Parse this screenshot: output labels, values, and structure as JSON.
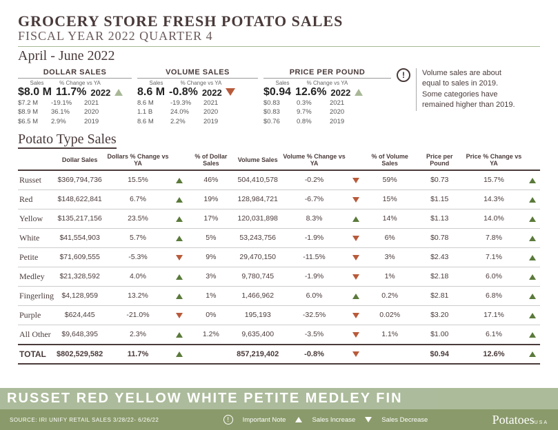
{
  "title_main": "GROCERY STORE  FRESH POTATO SALES",
  "title_sub": "FISCAL YEAR 2022 QUARTER 4",
  "period": "April - June 2022",
  "dollar": {
    "hdr": "DOLLAR SALES",
    "c1": "Sales",
    "c2": "% Change vs YA",
    "val": "$8.0 M",
    "pct": "11.7%",
    "yr": "2022",
    "dir": "up",
    "rows": [
      [
        "$7.2 M",
        "-19.1%",
        "2021"
      ],
      [
        "$8.9 M",
        "36.1%",
        "2020"
      ],
      [
        "$6.5 M",
        "2.9%",
        "2019"
      ]
    ]
  },
  "volume": {
    "hdr": "VOLUME SALES",
    "c1": "Sales",
    "c2": "% Change vs YA",
    "val": "8.6 M",
    "pct": "-0.8%",
    "yr": "2022",
    "dir": "down",
    "rows": [
      [
        "8.6 M",
        "-19.3%",
        "2021"
      ],
      [
        "1.1 B",
        "24.0%",
        "2020"
      ],
      [
        "8.6 M",
        "2.2%",
        "2019"
      ]
    ]
  },
  "price": {
    "hdr": "PRICE PER POUND",
    "c1": "Sales",
    "c2": "% Change vs YA",
    "val": "$0.94",
    "pct": "12.6%",
    "yr": "2022",
    "dir": "up",
    "rows": [
      [
        "$0.83",
        "0.3%",
        "2021"
      ],
      [
        "$0.83",
        "9.7%",
        "2020"
      ],
      [
        "$0.76",
        "0.8%",
        "2019"
      ]
    ]
  },
  "note": "Volume sales are about equal to sales in 2019. Some categories have remained higher than 2019.",
  "section": "Potato Type Sales",
  "cols": [
    "",
    "Dollar Sales",
    "Dollars % Change vs YA",
    "",
    "% of Dollar Sales",
    "Volume Sales",
    "Volume % Change vs YA",
    "",
    "% of Volume Sales",
    "Price per Pound",
    "Price % Change vs YA",
    ""
  ],
  "rows": [
    {
      "n": "Russet",
      "ds": "$369,794,736",
      "dp": "15.5%",
      "dd": "up",
      "dsh": "46%",
      "vs": "504,410,578",
      "vp": "-0.2%",
      "vd": "down",
      "vsh": "59%",
      "pp": "$0.73",
      "ppc": "15.7%",
      "pd": "up"
    },
    {
      "n": "Red",
      "ds": "$148,622,841",
      "dp": "6.7%",
      "dd": "up",
      "dsh": "19%",
      "vs": "128,984,721",
      "vp": "-6.7%",
      "vd": "down",
      "vsh": "15%",
      "pp": "$1.15",
      "ppc": "14.3%",
      "pd": "up"
    },
    {
      "n": "Yellow",
      "ds": "$135,217,156",
      "dp": "23.5%",
      "dd": "up",
      "dsh": "17%",
      "vs": "120,031,898",
      "vp": "8.3%",
      "vd": "up",
      "vsh": "14%",
      "pp": "$1.13",
      "ppc": "14.0%",
      "pd": "up"
    },
    {
      "n": "White",
      "ds": "$41,554,903",
      "dp": "5.7%",
      "dd": "up",
      "dsh": "5%",
      "vs": "53,243,756",
      "vp": "-1.9%",
      "vd": "down",
      "vsh": "6%",
      "pp": "$0.78",
      "ppc": "7.8%",
      "pd": "up"
    },
    {
      "n": "Petite",
      "ds": "$71,609,555",
      "dp": "-5.3%",
      "dd": "down",
      "dsh": "9%",
      "vs": "29,470,150",
      "vp": "-11.5%",
      "vd": "down",
      "vsh": "3%",
      "pp": "$2.43",
      "ppc": "7.1%",
      "pd": "up"
    },
    {
      "n": "Medley",
      "ds": "$21,328,592",
      "dp": "4.0%",
      "dd": "up",
      "dsh": "3%",
      "vs": "9,780,745",
      "vp": "-1.9%",
      "vd": "down",
      "vsh": "1%",
      "pp": "$2.18",
      "ppc": "6.0%",
      "pd": "up"
    },
    {
      "n": "Fingerling",
      "ds": "$4,128,959",
      "dp": "13.2%",
      "dd": "up",
      "dsh": "1%",
      "vs": "1,466,962",
      "vp": "6.0%",
      "vd": "up",
      "vsh": "0.2%",
      "pp": "$2.81",
      "ppc": "6.8%",
      "pd": "up"
    },
    {
      "n": "Purple",
      "ds": "$624,445",
      "dp": "-21.0%",
      "dd": "down",
      "dsh": "0%",
      "vs": "195,193",
      "vp": "-32.5%",
      "vd": "down",
      "vsh": "0.02%",
      "pp": "$3.20",
      "ppc": "17.1%",
      "pd": "up"
    },
    {
      "n": "All Other",
      "ds": "$9,648,395",
      "dp": "2.3%",
      "dd": "up",
      "dsh": "1.2%",
      "vs": "9,635,400",
      "vp": "-3.5%",
      "vd": "down",
      "vsh": "1.1%",
      "pp": "$1.00",
      "ppc": "6.1%",
      "pd": "up"
    }
  ],
  "total": {
    "n": "TOTAL",
    "ds": "$802,529,582",
    "dp": "11.7%",
    "dd": "up",
    "dsh": "",
    "vs": "857,219,402",
    "vp": "-0.8%",
    "vd": "down",
    "vsh": "",
    "pp": "$0.94",
    "ppc": "12.6%",
    "pd": "up"
  },
  "footer": {
    "bg": "RUSSET RED YELLOW WHITE PETITE MEDLEY FIN",
    "src": "SOURCE: IRI UNIFY RETAIL SALES 3/28/22- 6/26/22",
    "note": "Important Note",
    "inc": "Sales Increase",
    "dec": "Sales Decrease",
    "logo": "Potatoes",
    "logosub": "USA"
  }
}
